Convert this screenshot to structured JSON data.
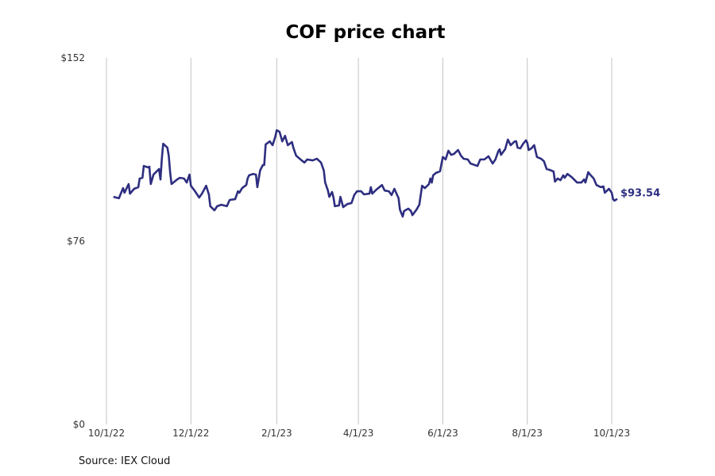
{
  "chart_data": {
    "type": "line",
    "title": "COF price chart",
    "source": "Source: IEX Cloud",
    "xlabel": "",
    "ylabel": "",
    "ylim": [
      0,
      152
    ],
    "xlim": [
      "2022-10-01",
      "2023-10-01"
    ],
    "y_ticks": [
      "$0",
      "$76",
      "$152"
    ],
    "y_tick_values": [
      0,
      76,
      152
    ],
    "x_ticks": [
      "10/1/22",
      "12/1/22",
      "2/1/23",
      "4/1/23",
      "6/1/23",
      "8/1/23",
      "10/1/23"
    ],
    "x_tick_dates": [
      "2022-10-01",
      "2022-12-01",
      "2023-02-01",
      "2023-04-01",
      "2023-06-01",
      "2023-08-01",
      "2023-10-01"
    ],
    "grid": "vertical",
    "line_color": "#2e2e80",
    "last_label": "$93.54",
    "series": [
      {
        "points": [
          [
            "2022-10-06",
            94.4
          ],
          [
            "2022-10-10",
            93.8
          ],
          [
            "2022-10-13",
            98.0
          ],
          [
            "2022-10-14",
            96.1
          ],
          [
            "2022-10-17",
            99.7
          ],
          [
            "2022-10-18",
            95.7
          ],
          [
            "2022-10-21",
            97.7
          ],
          [
            "2022-10-24",
            98.4
          ],
          [
            "2022-10-25",
            102.0
          ],
          [
            "2022-10-27",
            102.3
          ],
          [
            "2022-10-28",
            107.2
          ],
          [
            "2022-10-31",
            106.6
          ],
          [
            "2022-11-01",
            106.9
          ],
          [
            "2022-11-02",
            99.7
          ],
          [
            "2022-11-04",
            103.6
          ],
          [
            "2022-11-08",
            105.9
          ],
          [
            "2022-11-09",
            101.6
          ],
          [
            "2022-11-10",
            110.2
          ],
          [
            "2022-11-11",
            116.4
          ],
          [
            "2022-11-14",
            114.8
          ],
          [
            "2022-11-15",
            111.5
          ],
          [
            "2022-11-16",
            104.4
          ],
          [
            "2022-11-17",
            99.7
          ],
          [
            "2022-11-21",
            101.6
          ],
          [
            "2022-11-23",
            102.3
          ],
          [
            "2022-11-26",
            102.0
          ],
          [
            "2022-11-28",
            100.3
          ],
          [
            "2022-11-30",
            103.6
          ],
          [
            "2022-12-01",
            99.0
          ],
          [
            "2022-12-04",
            96.7
          ],
          [
            "2022-12-07",
            94.1
          ],
          [
            "2022-12-09",
            95.7
          ],
          [
            "2022-12-12",
            99.0
          ],
          [
            "2022-12-14",
            95.4
          ],
          [
            "2022-12-15",
            90.5
          ],
          [
            "2022-12-18",
            88.8
          ],
          [
            "2022-12-20",
            90.5
          ],
          [
            "2022-12-23",
            91.1
          ],
          [
            "2022-12-27",
            90.5
          ],
          [
            "2022-12-29",
            93.1
          ],
          [
            "2023-01-02",
            93.4
          ],
          [
            "2023-01-04",
            96.7
          ],
          [
            "2023-01-05",
            96.1
          ],
          [
            "2023-01-07",
            98.0
          ],
          [
            "2023-01-10",
            99.3
          ],
          [
            "2023-01-11",
            102.0
          ],
          [
            "2023-01-12",
            103.3
          ],
          [
            "2023-01-15",
            103.9
          ],
          [
            "2023-01-17",
            103.6
          ],
          [
            "2023-01-18",
            98.4
          ],
          [
            "2023-01-20",
            105.3
          ],
          [
            "2023-01-22",
            107.6
          ],
          [
            "2023-01-23",
            107.6
          ],
          [
            "2023-01-24",
            116.1
          ],
          [
            "2023-01-27",
            117.4
          ],
          [
            "2023-01-29",
            115.8
          ],
          [
            "2023-01-31",
            119.4
          ],
          [
            "2023-02-01",
            122.0
          ],
          [
            "2023-02-03",
            121.4
          ],
          [
            "2023-02-04",
            119.4
          ],
          [
            "2023-02-05",
            117.4
          ],
          [
            "2023-02-07",
            119.7
          ],
          [
            "2023-02-09",
            115.8
          ],
          [
            "2023-02-12",
            117.1
          ],
          [
            "2023-02-13",
            114.8
          ],
          [
            "2023-02-15",
            111.5
          ],
          [
            "2023-02-19",
            109.5
          ],
          [
            "2023-02-21",
            108.6
          ],
          [
            "2023-02-23",
            109.9
          ],
          [
            "2023-02-27",
            109.5
          ],
          [
            "2023-03-02",
            110.2
          ],
          [
            "2023-03-05",
            108.6
          ],
          [
            "2023-03-07",
            105.3
          ],
          [
            "2023-03-08",
            100.3
          ],
          [
            "2023-03-10",
            97.0
          ],
          [
            "2023-03-11",
            94.4
          ],
          [
            "2023-03-13",
            96.4
          ],
          [
            "2023-03-14",
            94.1
          ],
          [
            "2023-03-15",
            90.5
          ],
          [
            "2023-03-18",
            90.8
          ],
          [
            "2023-03-19",
            94.4
          ],
          [
            "2023-03-21",
            90.1
          ],
          [
            "2023-03-24",
            91.4
          ],
          [
            "2023-03-27",
            91.8
          ],
          [
            "2023-03-29",
            95.1
          ],
          [
            "2023-03-31",
            96.7
          ],
          [
            "2023-04-03",
            96.7
          ],
          [
            "2023-04-05",
            95.4
          ],
          [
            "2023-04-09",
            95.7
          ],
          [
            "2023-04-10",
            98.4
          ],
          [
            "2023-04-11",
            95.7
          ],
          [
            "2023-04-14",
            97.4
          ],
          [
            "2023-04-18",
            99.3
          ],
          [
            "2023-04-20",
            97.0
          ],
          [
            "2023-04-23",
            96.7
          ],
          [
            "2023-04-25",
            95.1
          ],
          [
            "2023-04-27",
            97.7
          ],
          [
            "2023-04-30",
            93.8
          ],
          [
            "2023-05-01",
            89.1
          ],
          [
            "2023-05-03",
            86.2
          ],
          [
            "2023-05-04",
            88.5
          ],
          [
            "2023-05-07",
            89.5
          ],
          [
            "2023-05-09",
            88.5
          ],
          [
            "2023-05-10",
            86.8
          ],
          [
            "2023-05-13",
            89.1
          ],
          [
            "2023-05-15",
            91.1
          ],
          [
            "2023-05-17",
            99.0
          ],
          [
            "2023-05-19",
            98.0
          ],
          [
            "2023-05-22",
            99.7
          ],
          [
            "2023-05-23",
            102.0
          ],
          [
            "2023-05-24",
            100.3
          ],
          [
            "2023-05-25",
            103.3
          ],
          [
            "2023-05-27",
            104.3
          ],
          [
            "2023-05-30",
            105.0
          ],
          [
            "2023-06-01",
            110.9
          ],
          [
            "2023-06-03",
            109.9
          ],
          [
            "2023-06-05",
            113.5
          ],
          [
            "2023-06-07",
            111.8
          ],
          [
            "2023-06-09",
            112.2
          ],
          [
            "2023-06-12",
            113.8
          ],
          [
            "2023-06-14",
            111.5
          ],
          [
            "2023-06-16",
            110.2
          ],
          [
            "2023-06-19",
            109.9
          ],
          [
            "2023-06-21",
            108.2
          ],
          [
            "2023-06-26",
            107.2
          ],
          [
            "2023-06-28",
            109.9
          ],
          [
            "2023-07-01",
            109.9
          ],
          [
            "2023-07-04",
            111.2
          ],
          [
            "2023-07-07",
            108.2
          ],
          [
            "2023-07-09",
            109.9
          ],
          [
            "2023-07-11",
            113.2
          ],
          [
            "2023-07-12",
            114.1
          ],
          [
            "2023-07-13",
            111.8
          ],
          [
            "2023-07-16",
            114.1
          ],
          [
            "2023-07-18",
            118.1
          ],
          [
            "2023-07-20",
            115.8
          ],
          [
            "2023-07-23",
            117.4
          ],
          [
            "2023-07-24",
            117.4
          ],
          [
            "2023-07-25",
            114.8
          ],
          [
            "2023-07-27",
            114.5
          ],
          [
            "2023-07-29",
            116.4
          ],
          [
            "2023-07-31",
            117.8
          ],
          [
            "2023-08-01",
            116.8
          ],
          [
            "2023-08-02",
            113.8
          ],
          [
            "2023-08-04",
            114.5
          ],
          [
            "2023-08-06",
            115.8
          ],
          [
            "2023-08-08",
            110.9
          ],
          [
            "2023-08-11",
            110.2
          ],
          [
            "2023-08-13",
            109.2
          ],
          [
            "2023-08-15",
            105.9
          ],
          [
            "2023-08-17",
            105.6
          ],
          [
            "2023-08-20",
            104.9
          ],
          [
            "2023-08-21",
            100.7
          ],
          [
            "2023-08-23",
            102.0
          ],
          [
            "2023-08-25",
            101.3
          ],
          [
            "2023-08-27",
            103.3
          ],
          [
            "2023-08-28",
            102.3
          ],
          [
            "2023-08-30",
            103.9
          ],
          [
            "2023-09-02",
            102.6
          ],
          [
            "2023-09-06",
            100.3
          ],
          [
            "2023-09-09",
            100.3
          ],
          [
            "2023-09-11",
            101.6
          ],
          [
            "2023-09-12",
            100.3
          ],
          [
            "2023-09-14",
            104.6
          ],
          [
            "2023-09-15",
            103.9
          ],
          [
            "2023-09-18",
            102.0
          ],
          [
            "2023-09-20",
            99.3
          ],
          [
            "2023-09-23",
            98.4
          ],
          [
            "2023-09-25",
            98.7
          ],
          [
            "2023-09-26",
            96.1
          ],
          [
            "2023-09-29",
            97.7
          ],
          [
            "2023-10-01",
            96.1
          ],
          [
            "2023-10-02",
            93.4
          ],
          [
            "2023-10-03",
            92.8
          ],
          [
            "2023-10-05",
            93.54
          ]
        ]
      }
    ]
  }
}
